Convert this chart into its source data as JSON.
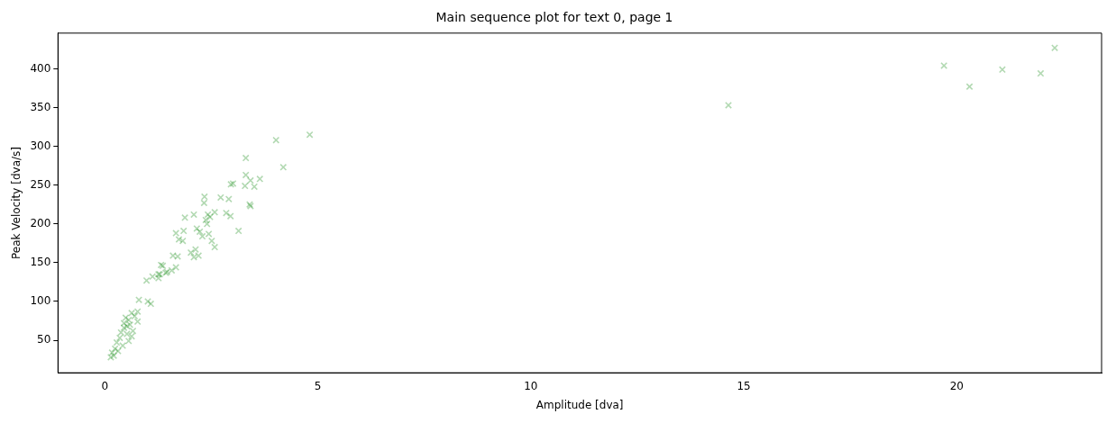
{
  "chart_data": {
    "type": "scatter",
    "title": "Main sequence plot for text 0, page 1",
    "xlabel": "Amplitude [dva]",
    "ylabel": "Peak Velocity [dva/s]",
    "xlim": [
      -1.1,
      23.4
    ],
    "ylim": [
      8,
      446
    ],
    "xticks": [
      0,
      5,
      10,
      15,
      20
    ],
    "yticks": [
      50,
      100,
      150,
      200,
      250,
      300,
      350,
      400
    ],
    "grid": false,
    "legend": false,
    "marker": "cross",
    "series": [
      {
        "color": "#008000",
        "x": [
          22.3,
          19.7,
          20.3,
          21.07,
          21.97,
          14.64,
          4.81,
          4.02,
          3.31,
          4.19,
          3.31,
          3.64,
          3.42,
          3.01,
          2.96,
          3.29,
          3.51,
          2.34,
          2.72,
          2.91,
          2.33,
          3.4,
          3.42,
          1.88,
          2.09,
          2.42,
          2.58,
          2.85,
          2.95,
          2.37,
          2.47,
          2.4,
          3.14,
          1.67,
          1.85,
          2.16,
          2.23,
          2.44,
          1.74,
          1.83,
          2.29,
          2.51,
          2.58,
          2.02,
          2.13,
          2.2,
          2.09,
          1.6,
          1.71,
          1.32,
          1.67,
          1.57,
          1.46,
          1.26,
          1.12,
          1.36,
          1.29,
          1.43,
          0.98,
          1.26,
          0.8,
          1.01,
          1.08,
          0.63,
          0.7,
          0.49,
          0.77,
          0.59,
          0.45,
          0.66,
          0.38,
          0.52,
          0.63,
          0.35,
          0.56,
          0.28,
          0.42,
          0.24,
          0.31,
          0.17,
          0.21,
          0.14,
          0.52,
          0.77,
          0.45,
          0.56
        ],
        "values": [
          427,
          404,
          377,
          399,
          394,
          353,
          315,
          308,
          285,
          273,
          263,
          258,
          256,
          252,
          251,
          249,
          248,
          235,
          234,
          232,
          227,
          225,
          223,
          208,
          212,
          212,
          215,
          214,
          210,
          205,
          209,
          200,
          191,
          188,
          191,
          194,
          190,
          187,
          180,
          178,
          184,
          178,
          170,
          163,
          167,
          159,
          157,
          159,
          158,
          147,
          144,
          140,
          138,
          135,
          132,
          146,
          135,
          137,
          127,
          130,
          102,
          100,
          97,
          85,
          81,
          79,
          74,
          70,
          66,
          62,
          60,
          58,
          55,
          53,
          49,
          47,
          43,
          39,
          36,
          34,
          30,
          28,
          68,
          87,
          72,
          76
        ]
      }
    ]
  }
}
